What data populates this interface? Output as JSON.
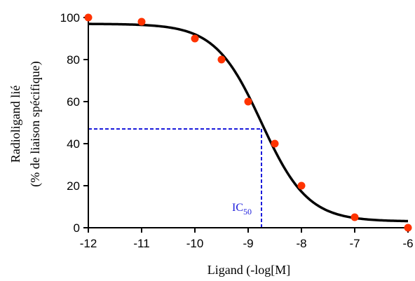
{
  "chart_data": {
    "type": "scatter",
    "title": "",
    "xlabel": "Ligand (-log[M]",
    "ylabel_line1": "Radioligand lié",
    "ylabel_line2": "(% de liaison spécifique)",
    "xlim": [
      -12,
      -6
    ],
    "ylim": [
      0,
      100
    ],
    "x_ticks": [
      -12,
      -11,
      -10,
      -9,
      -8,
      -7,
      -6
    ],
    "y_ticks": [
      0,
      20,
      40,
      60,
      80,
      100
    ],
    "grid": false,
    "series": [
      {
        "type": "scatter",
        "color": "#ff3300",
        "points": [
          {
            "x": -12,
            "y": 100
          },
          {
            "x": -11,
            "y": 98
          },
          {
            "x": -10,
            "y": 90
          },
          {
            "x": -9.5,
            "y": 80
          },
          {
            "x": -9,
            "y": 60
          },
          {
            "x": -8.5,
            "y": 40
          },
          {
            "x": -8,
            "y": 20
          },
          {
            "x": -7,
            "y": 5
          },
          {
            "x": -6,
            "y": 0
          }
        ]
      },
      {
        "type": "line",
        "color": "#000000",
        "curve": "four-parameter logistic fit",
        "fit": {
          "top": 97,
          "bottom": 3,
          "log_ic50": -8.75,
          "hill_slope": 1
        }
      }
    ],
    "annotation": {
      "label": "IC",
      "subscript": "50",
      "x": -8.75,
      "y": 47,
      "color": "#1a1adb",
      "style": "dashed"
    }
  }
}
